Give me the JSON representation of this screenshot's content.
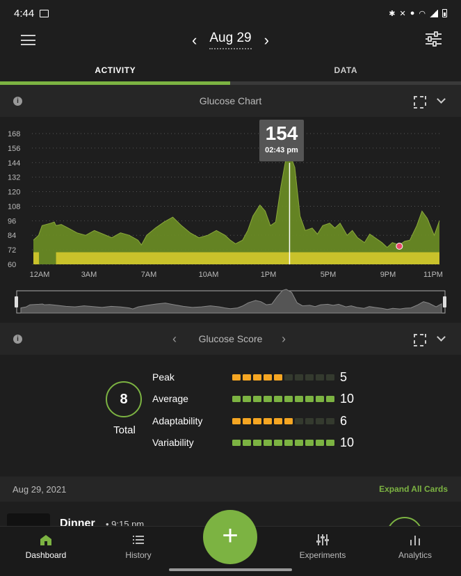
{
  "status": {
    "time": "4:44"
  },
  "header": {
    "date": "Aug 29"
  },
  "tabs": [
    {
      "label": "ACTIVITY"
    },
    {
      "label": "DATA"
    }
  ],
  "glucose_card": {
    "title": "Glucose Chart"
  },
  "tooltip": {
    "value": "154",
    "time": "02:43 pm"
  },
  "chart_data": {
    "type": "area",
    "y_ticks": [
      "168",
      "156",
      "144",
      "132",
      "120",
      "108",
      "96",
      "84",
      "72",
      "60"
    ],
    "x_ticks": [
      "12AM",
      "3AM",
      "7AM",
      "10AM",
      "1PM",
      "5PM",
      "9PM",
      "11PM"
    ],
    "ylim": [
      60,
      168
    ],
    "target_band": [
      60,
      70
    ],
    "grid": true,
    "series": [
      {
        "x": [
          0,
          0.3,
          0.5,
          1.0,
          1.2,
          1.3,
          1.6,
          2.0,
          2.5,
          3.0,
          3.5,
          4.0,
          4.5,
          5.0,
          5.5,
          6.0,
          6.2,
          6.5,
          7.0,
          7.5,
          8.0,
          8.5,
          9.0,
          9.5,
          10.0,
          10.5,
          11.0,
          11.3,
          11.6,
          12.0,
          12.3,
          12.6,
          13.0,
          13.3,
          13.6,
          13.9,
          14.2,
          14.5,
          14.7,
          15.0,
          15.3,
          15.6,
          16.0,
          16.3,
          16.6,
          17.0,
          17.3,
          17.6,
          18.0,
          18.3,
          18.6,
          19.0,
          19.3,
          19.6,
          20.0,
          20.3,
          20.6,
          21.0,
          21.3,
          21.6,
          22.0,
          22.3,
          22.6,
          23.0,
          23.3
        ],
        "y": [
          80,
          84,
          92,
          94,
          95,
          92,
          93,
          90,
          86,
          84,
          88,
          85,
          82,
          86,
          84,
          80,
          76,
          84,
          90,
          95,
          99,
          92,
          86,
          82,
          84,
          88,
          84,
          80,
          77,
          80,
          88,
          100,
          109,
          104,
          92,
          95,
          124,
          148,
          152,
          140,
          100,
          88,
          90,
          85,
          92,
          94,
          90,
          94,
          84,
          88,
          82,
          78,
          85,
          82,
          78,
          74,
          78,
          76,
          79,
          80,
          92,
          104,
          98,
          84,
          96
        ]
      }
    ]
  },
  "score_card": {
    "title": "Glucose Score"
  },
  "score": {
    "total_value": "8",
    "total_label": "Total",
    "metrics": [
      {
        "label": "Peak",
        "value": "5",
        "filled": 5,
        "color": "#f5a623"
      },
      {
        "label": "Average",
        "value": "10",
        "filled": 10,
        "color": "#7cb342"
      },
      {
        "label": "Adaptability",
        "value": "6",
        "filled": 6,
        "color": "#f5a623"
      },
      {
        "label": "Variability",
        "value": "10",
        "filled": 10,
        "color": "#7cb342"
      }
    ]
  },
  "date_row": {
    "label": "Aug 29, 2021",
    "expand_label": "Expand All Cards"
  },
  "meal": {
    "title": "Dinner",
    "time": "• 9:15 pm"
  },
  "nav": {
    "dashboard": "Dashboard",
    "history": "History",
    "experiments": "Experiments",
    "analytics": "Analytics",
    "fab": "+"
  },
  "colors": {
    "accent": "#7cb342",
    "warn": "#f5a623",
    "band": "#c9c22b",
    "area": "#6b8e23"
  }
}
